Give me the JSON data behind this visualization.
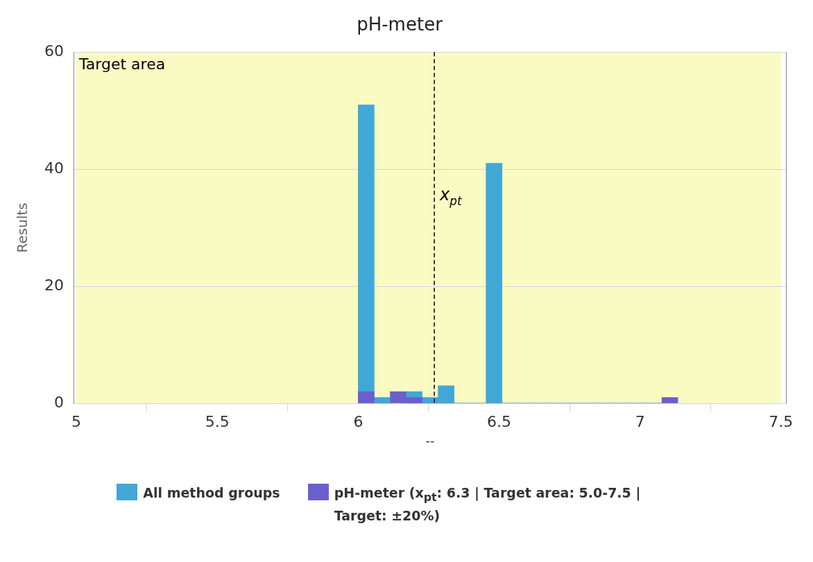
{
  "chart_data": {
    "type": "histogram",
    "title": "pH-meter",
    "xlabel": "--",
    "ylabel": "Results",
    "bins": [
      6.0,
      6.0567,
      6.1134,
      6.1701,
      6.2268,
      6.2835,
      6.3402,
      6.3969,
      6.4536,
      6.5103,
      6.567,
      6.6237,
      6.6804,
      6.7371,
      6.7938,
      6.8505,
      6.9072,
      6.9639,
      7.0206,
      7.0773,
      7.134
    ],
    "series": [
      {
        "name": "All method groups",
        "color": "#41a8d6",
        "values": [
          51,
          1,
          null,
          2,
          1,
          3,
          0,
          0,
          41,
          0,
          0,
          0,
          0,
          0,
          0,
          0,
          0,
          0,
          0,
          null
        ]
      },
      {
        "name": "pH-meter (x$_{pt}$: 6.3 | Target area: 5.0-7.5 | Target: ±20%)",
        "color": "#6a60cc",
        "values": [
          2,
          0,
          2,
          1,
          0,
          0,
          0,
          0,
          0,
          0,
          0,
          0,
          0,
          0,
          0,
          0,
          0,
          0,
          0,
          1
        ]
      }
    ],
    "xlim": [
      4.99,
      7.52
    ],
    "xticks": [
      5,
      5.5,
      6,
      6.5,
      7,
      7.5
    ],
    "ylim": [
      0,
      60
    ],
    "yticks": [
      0,
      20,
      40,
      60
    ],
    "grid": "y",
    "legend": "bottom",
    "ref_lines": [
      {
        "axis": "x",
        "value": 6.27,
        "label": "x$_{pt}$",
        "line_style": "dashed",
        "color": "#000000"
      }
    ],
    "bands": [
      {
        "axis": "x",
        "from": 5.0,
        "to": 7.5,
        "label": "Target area",
        "color": "#fafac3"
      }
    ]
  }
}
